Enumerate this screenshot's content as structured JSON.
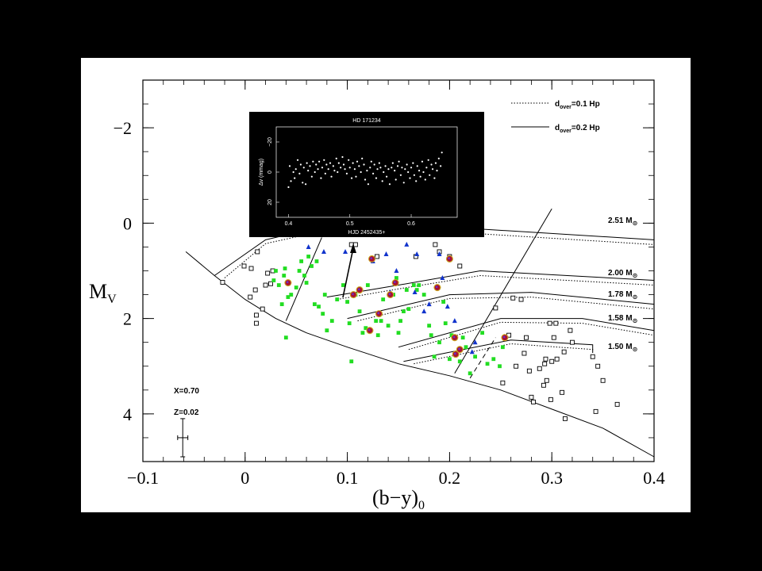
{
  "chart_data": {
    "type": "scatter",
    "xlim": [
      -0.1,
      0.4
    ],
    "ylim": [
      5,
      -3
    ],
    "x_ticks": [
      "−0.1",
      "0",
      "0.1",
      "0.2",
      "0.3",
      "0.4"
    ],
    "y_ticks": [
      "−2",
      "0",
      "2",
      "4"
    ],
    "xlabel": "(b−y)",
    "xlabel_sub": "0",
    "ylabel": "M",
    "ylabel_sub": "V",
    "legend": [
      {
        "label_pre": "d",
        "label_sub": "over",
        "label_post": "=0.1 Hp",
        "style": "dotted"
      },
      {
        "label_pre": "d",
        "label_sub": "over",
        "label_post": "=0.2 Hp",
        "style": "solid"
      }
    ],
    "annotations": [
      "X=0.70",
      "Z=0.02"
    ],
    "mass_labels": [
      {
        "text": "2.51 M",
        "sub": "⊙",
        "y": 0
      },
      {
        "text": "2.00 M",
        "sub": "⊙",
        "y": 1.05
      },
      {
        "text": "1.78 M",
        "sub": "⊙",
        "y": 1.5
      },
      {
        "text": "1.58 M",
        "sub": "⊙",
        "y": 2.05
      },
      {
        "text": "1.50 M",
        "sub": "⊙",
        "y": 2.6
      }
    ],
    "error_bar": {
      "x": -0.061,
      "y": 4.5,
      "dx": 0.005,
      "dy": 0.4
    },
    "series": [
      {
        "marker": "open-square",
        "color": "#000000",
        "points": [
          [
            -0.001,
            0.9
          ],
          [
            -0.022,
            1.24
          ],
          [
            0.005,
            1.55
          ],
          [
            0.011,
            1.93
          ],
          [
            0.011,
            2.1
          ],
          [
            0.012,
            0.6
          ],
          [
            0.006,
            0.95
          ],
          [
            0.01,
            1.4
          ],
          [
            0.02,
            1.3
          ],
          [
            0.022,
            1.05
          ],
          [
            0.025,
            1.27
          ],
          [
            0.027,
            1.0
          ],
          [
            0.017,
            1.8
          ],
          [
            0.104,
            0.45
          ],
          [
            0.108,
            0.45
          ],
          [
            0.129,
            0.7
          ],
          [
            0.167,
            0.7
          ],
          [
            0.186,
            0.45
          ],
          [
            0.19,
            0.6
          ],
          [
            0.2,
            0.7
          ],
          [
            0.21,
            0.9
          ],
          [
            0.245,
            1.78
          ],
          [
            0.262,
            1.57
          ],
          [
            0.27,
            1.6
          ],
          [
            0.252,
            3.35
          ],
          [
            0.258,
            2.35
          ],
          [
            0.265,
            3.0
          ],
          [
            0.273,
            2.73
          ],
          [
            0.275,
            2.4
          ],
          [
            0.278,
            3.1
          ],
          [
            0.28,
            3.65
          ],
          [
            0.282,
            3.75
          ],
          [
            0.288,
            3.05
          ],
          [
            0.292,
            3.4
          ],
          [
            0.293,
            2.95
          ],
          [
            0.294,
            2.85
          ],
          [
            0.295,
            3.3
          ],
          [
            0.298,
            2.1
          ],
          [
            0.299,
            3.7
          ],
          [
            0.3,
            2.9
          ],
          [
            0.302,
            2.4
          ],
          [
            0.304,
            2.1
          ],
          [
            0.305,
            2.85
          ],
          [
            0.31,
            3.55
          ],
          [
            0.312,
            2.7
          ],
          [
            0.313,
            4.1
          ],
          [
            0.318,
            2.25
          ],
          [
            0.32,
            2.5
          ],
          [
            0.34,
            2.8
          ],
          [
            0.343,
            3.95
          ],
          [
            0.345,
            3.0
          ],
          [
            0.35,
            3.3
          ],
          [
            0.364,
            3.8
          ]
        ]
      },
      {
        "marker": "filled-square",
        "color": "#22dd22",
        "points": [
          [
            0.028,
            1.2
          ],
          [
            0.03,
            1.0
          ],
          [
            0.033,
            1.3
          ],
          [
            0.036,
            1.7
          ],
          [
            0.038,
            1.1
          ],
          [
            0.039,
            0.95
          ],
          [
            0.04,
            2.4
          ],
          [
            0.042,
            1.55
          ],
          [
            0.045,
            1.5
          ],
          [
            0.05,
            1.35
          ],
          [
            0.053,
            1.0
          ],
          [
            0.055,
            0.8
          ],
          [
            0.058,
            1.1
          ],
          [
            0.06,
            1.25
          ],
          [
            0.062,
            0.7
          ],
          [
            0.065,
            0.9
          ],
          [
            0.068,
            1.7
          ],
          [
            0.07,
            0.8
          ],
          [
            0.072,
            1.75
          ],
          [
            0.076,
            1.9
          ],
          [
            0.078,
            1.5
          ],
          [
            0.08,
            2.25
          ],
          [
            0.085,
            2.05
          ],
          [
            0.09,
            1.6
          ],
          [
            0.096,
            1.3
          ],
          [
            0.1,
            1.65
          ],
          [
            0.102,
            2.1
          ],
          [
            0.104,
            2.9
          ],
          [
            0.108,
            1.5
          ],
          [
            0.112,
            1.85
          ],
          [
            0.115,
            2.3
          ],
          [
            0.118,
            2.2
          ],
          [
            0.12,
            1.3
          ],
          [
            0.128,
            2.05
          ],
          [
            0.13,
            2.35
          ],
          [
            0.133,
            2.05
          ],
          [
            0.135,
            1.6
          ],
          [
            0.14,
            2.15
          ],
          [
            0.145,
            1.5
          ],
          [
            0.148,
            1.15
          ],
          [
            0.15,
            2.3
          ],
          [
            0.152,
            2.05
          ],
          [
            0.155,
            1.85
          ],
          [
            0.158,
            1.4
          ],
          [
            0.16,
            1.8
          ],
          [
            0.165,
            1.3
          ],
          [
            0.168,
            1.4
          ],
          [
            0.17,
            1.3
          ],
          [
            0.175,
            1.5
          ],
          [
            0.18,
            2.15
          ],
          [
            0.182,
            2.35
          ],
          [
            0.185,
            2.8
          ],
          [
            0.19,
            2.5
          ],
          [
            0.194,
            1.65
          ],
          [
            0.196,
            2.1
          ],
          [
            0.2,
            2.85
          ],
          [
            0.202,
            2.35
          ],
          [
            0.205,
            2.75
          ],
          [
            0.21,
            2.9
          ],
          [
            0.213,
            2.4
          ],
          [
            0.216,
            2.6
          ],
          [
            0.22,
            3.15
          ],
          [
            0.225,
            2.8
          ],
          [
            0.232,
            2.3
          ],
          [
            0.237,
            2.95
          ],
          [
            0.243,
            2.85
          ],
          [
            0.249,
            3.0
          ],
          [
            0.252,
            2.6
          ]
        ]
      },
      {
        "marker": "filled-triangle",
        "color": "#1133cc",
        "points": [
          [
            0.062,
            0.5
          ],
          [
            0.077,
            0.6
          ],
          [
            0.098,
            0.6
          ],
          [
            0.125,
            0.8
          ],
          [
            0.138,
            0.65
          ],
          [
            0.142,
            1.45
          ],
          [
            0.148,
            1.0
          ],
          [
            0.158,
            0.45
          ],
          [
            0.166,
            1.45
          ],
          [
            0.168,
            0.65
          ],
          [
            0.175,
            1.85
          ],
          [
            0.18,
            1.7
          ],
          [
            0.19,
            0.65
          ],
          [
            0.193,
            1.15
          ],
          [
            0.198,
            1.75
          ],
          [
            0.205,
            2.05
          ],
          [
            0.222,
            2.7
          ],
          [
            0.225,
            2.5
          ]
        ]
      },
      {
        "marker": "ringed-circle",
        "color": "#aa1133",
        "points": [
          [
            0.042,
            1.25
          ],
          [
            0.106,
            1.5
          ],
          [
            0.112,
            1.4
          ],
          [
            0.122,
            2.25
          ],
          [
            0.124,
            0.75
          ],
          [
            0.131,
            1.9
          ],
          [
            0.142,
            1.5
          ],
          [
            0.147,
            1.25
          ],
          [
            0.188,
            1.35
          ],
          [
            0.2,
            0.75
          ],
          [
            0.205,
            2.4
          ],
          [
            0.206,
            2.75
          ],
          [
            0.21,
            2.65
          ],
          [
            0.254,
            2.4
          ]
        ]
      }
    ]
  },
  "inset": {
    "title": "HD 171234",
    "ylabel": "Δv (mmag)",
    "xlabel": "HJD 2452435+",
    "x_ticks": [
      "0.4",
      "0.5",
      "0.6"
    ],
    "y_ticks": [
      "−20",
      "0",
      "20"
    ],
    "xlim": [
      0.38,
      0.675
    ],
    "ylim": [
      -30,
      30
    ],
    "points": [
      [
        0.4,
        10
      ],
      [
        0.402,
        -4
      ],
      [
        0.404,
        6
      ],
      [
        0.408,
        0
      ],
      [
        0.41,
        4
      ],
      [
        0.412,
        -2
      ],
      [
        0.415,
        -8
      ],
      [
        0.418,
        1
      ],
      [
        0.42,
        -5
      ],
      [
        0.423,
        7
      ],
      [
        0.425,
        -3
      ],
      [
        0.428,
        8
      ],
      [
        0.43,
        -6
      ],
      [
        0.432,
        -1
      ],
      [
        0.435,
        -4
      ],
      [
        0.438,
        3
      ],
      [
        0.44,
        -7
      ],
      [
        0.443,
        0
      ],
      [
        0.445,
        -5
      ],
      [
        0.448,
        -2
      ],
      [
        0.45,
        -7
      ],
      [
        0.453,
        4
      ],
      [
        0.455,
        -3
      ],
      [
        0.458,
        -8
      ],
      [
        0.46,
        1
      ],
      [
        0.462,
        -5
      ],
      [
        0.465,
        -2
      ],
      [
        0.468,
        -6
      ],
      [
        0.47,
        3
      ],
      [
        0.473,
        -4
      ],
      [
        0.475,
        -1
      ],
      [
        0.478,
        -9
      ],
      [
        0.48,
        0
      ],
      [
        0.482,
        -6
      ],
      [
        0.485,
        -3
      ],
      [
        0.488,
        -10
      ],
      [
        0.49,
        -5
      ],
      [
        0.492,
        -2
      ],
      [
        0.495,
        1
      ],
      [
        0.498,
        -8
      ],
      [
        0.5,
        -3
      ],
      [
        0.503,
        4
      ],
      [
        0.505,
        -6
      ],
      [
        0.508,
        -2
      ],
      [
        0.51,
        3
      ],
      [
        0.512,
        -7
      ],
      [
        0.515,
        -4
      ],
      [
        0.518,
        0
      ],
      [
        0.52,
        -9
      ],
      [
        0.523,
        -5
      ],
      [
        0.525,
        5
      ],
      [
        0.528,
        -1
      ],
      [
        0.53,
        8
      ],
      [
        0.533,
        -3
      ],
      [
        0.535,
        -7
      ],
      [
        0.538,
        1
      ],
      [
        0.54,
        -5
      ],
      [
        0.543,
        4
      ],
      [
        0.545,
        -2
      ],
      [
        0.548,
        -6
      ],
      [
        0.55,
        -3
      ],
      [
        0.553,
        6
      ],
      [
        0.555,
        0
      ],
      [
        0.558,
        -4
      ],
      [
        0.56,
        3
      ],
      [
        0.563,
        -2
      ],
      [
        0.565,
        8
      ],
      [
        0.568,
        -3
      ],
      [
        0.57,
        -6
      ],
      [
        0.573,
        -1
      ],
      [
        0.575,
        5
      ],
      [
        0.578,
        -4
      ],
      [
        0.58,
        -7
      ],
      [
        0.583,
        2
      ],
      [
        0.585,
        -3
      ],
      [
        0.588,
        7
      ],
      [
        0.59,
        -2
      ],
      [
        0.593,
        -5
      ],
      [
        0.595,
        0
      ],
      [
        0.598,
        4
      ],
      [
        0.6,
        -3
      ],
      [
        0.603,
        -6
      ],
      [
        0.605,
        2
      ],
      [
        0.608,
        6
      ],
      [
        0.61,
        -4
      ],
      [
        0.613,
        -1
      ],
      [
        0.615,
        3
      ],
      [
        0.618,
        -7
      ],
      [
        0.62,
        0
      ],
      [
        0.623,
        5
      ],
      [
        0.625,
        -3
      ],
      [
        0.628,
        -8
      ],
      [
        0.63,
        2
      ],
      [
        0.633,
        -5
      ],
      [
        0.635,
        -2
      ],
      [
        0.638,
        4
      ],
      [
        0.64,
        -6
      ],
      [
        0.642,
        -1
      ],
      [
        0.645,
        -9
      ],
      [
        0.648,
        -4
      ],
      [
        0.65,
        -13
      ]
    ]
  }
}
